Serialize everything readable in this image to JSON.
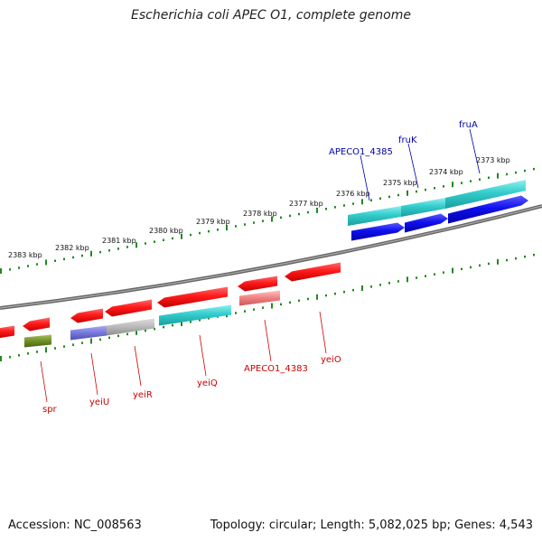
{
  "title": "Escherichia coli APEC O1, complete genome",
  "footer": {
    "accession": "Accession: NC_008563",
    "summary": "Topology: circular; Length: 5,082,025 bp; Genes: 4,543"
  },
  "colors": {
    "backbone": "#777777",
    "ticks": "#1f8a1f",
    "forward_label": "#0000aa",
    "reverse_label": "#cc0000"
  },
  "outer_kbp_labels": [
    "2373 kbp",
    "2374 kbp",
    "2375 kbp",
    "2376 kbp",
    "2377 kbp",
    "2378 kbp",
    "2379 kbp",
    "2380 kbp",
    "2381 kbp",
    "2382 kbp",
    "2383 kbp"
  ],
  "forward_gene_labels": [
    "fruA",
    "fruK",
    "APECO1_4385"
  ],
  "reverse_gene_labels": [
    "yeiO",
    "APECO1_4383",
    "yeiQ",
    "yeiR",
    "yeiU",
    "spr"
  ]
}
